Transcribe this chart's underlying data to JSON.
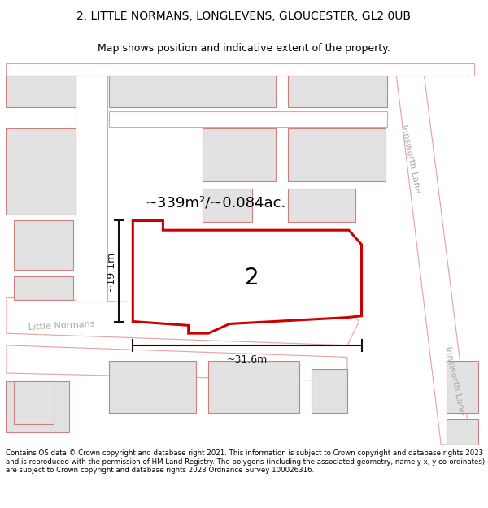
{
  "title_line1": "2, LITTLE NORMANS, LONGLEVENS, GLOUCESTER, GL2 0UB",
  "title_line2": "Map shows position and indicative extent of the property.",
  "footer_text": "Contains OS data © Crown copyright and database right 2021. This information is subject to Crown copyright and database rights 2023 and is reproduced with the permission of HM Land Registry. The polygons (including the associated geometry, namely x, y co-ordinates) are subject to Crown copyright and database rights 2023 Ordnance Survey 100026316.",
  "bg_color": "#ffffff",
  "map_bg": "#f0f0f0",
  "road_color": "#ffffff",
  "road_stroke": "#e8a0a0",
  "building_fill": "#e2e2e2",
  "building_stroke": "#d08080",
  "highlight_fill": "#ffffff",
  "highlight_stroke": "#cc0000",
  "area_text": "~339m²/~0.084ac.",
  "label_text": "2",
  "dim_width": "~31.6m",
  "dim_height": "~19.1m",
  "road_label_right1": "Innsworth Lane",
  "road_label_right2": "Innsworth Lane",
  "road_label_left": "Little Normans",
  "road_label_color": "#aaaaaa",
  "dim_color": "#111111"
}
